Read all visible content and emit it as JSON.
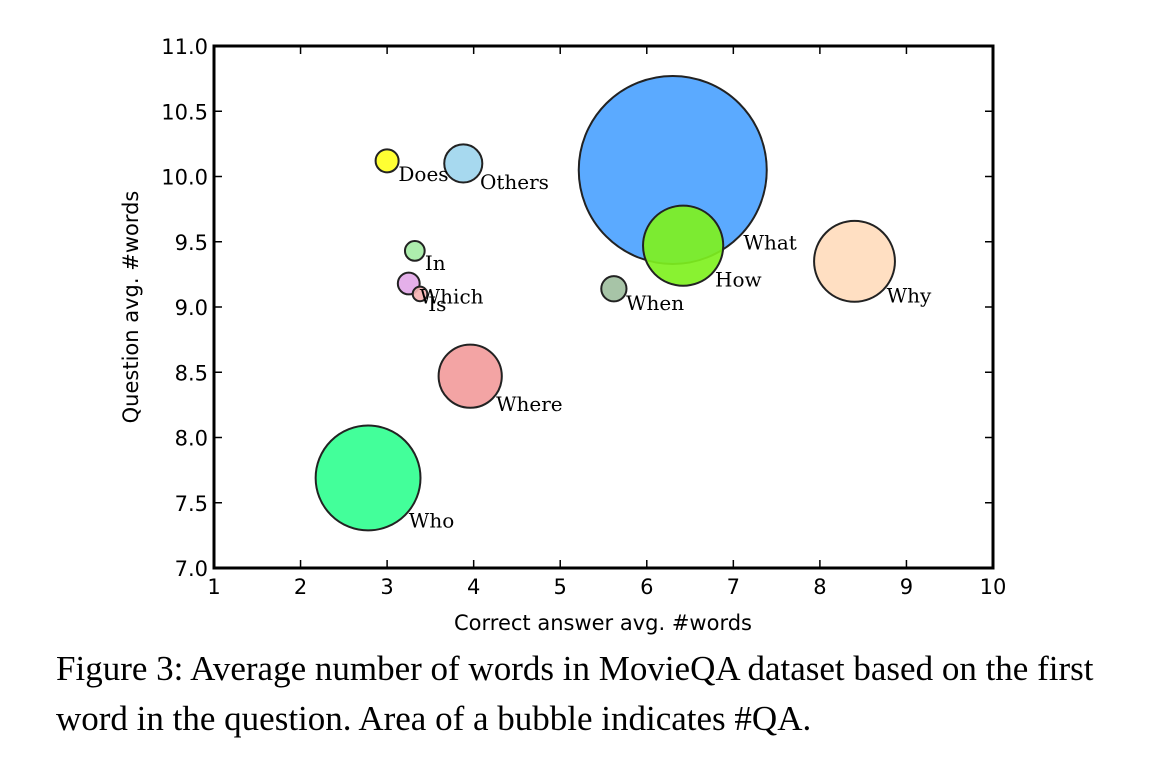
{
  "chart_data": {
    "type": "scatter",
    "xlabel": "Correct answer avg. #words",
    "ylabel": "Question avg. #words",
    "xlim": [
      1,
      10
    ],
    "ylim": [
      7.0,
      11.0
    ],
    "xticks": [
      "1",
      "2",
      "3",
      "4",
      "5",
      "6",
      "7",
      "8",
      "9",
      "10"
    ],
    "yticks": [
      "7.0",
      "7.5",
      "8.0",
      "8.5",
      "9.0",
      "9.5",
      "10.0",
      "10.5",
      "11.0"
    ],
    "grid": false,
    "points": [
      {
        "label": "What",
        "x": 6.3,
        "y": 10.05,
        "area": 100,
        "color": "#4da3ff"
      },
      {
        "label": "Who",
        "x": 2.78,
        "y": 7.69,
        "area": 31.1,
        "color": "#33ff91"
      },
      {
        "label": "Why",
        "x": 8.4,
        "y": 9.35,
        "area": 18.5,
        "color": "#ffdcbd"
      },
      {
        "label": "How",
        "x": 6.42,
        "y": 9.47,
        "area": 18.2,
        "color": "#7ff11f"
      },
      {
        "label": "Where",
        "x": 3.96,
        "y": 8.47,
        "area": 11.3,
        "color": "#f29c9c"
      },
      {
        "label": "Others",
        "x": 3.88,
        "y": 10.1,
        "area": 4.1,
        "color": "#9fd6ee"
      },
      {
        "label": "When",
        "x": 5.62,
        "y": 9.14,
        "area": 1.8,
        "color": "#9fbf9f"
      },
      {
        "label": "Does",
        "x": 3.0,
        "y": 10.12,
        "area": 1.5,
        "color": "#ffff22"
      },
      {
        "label": "In",
        "x": 3.32,
        "y": 9.43,
        "area": 1.1,
        "color": "#a6eda6"
      },
      {
        "label": "Which",
        "x": 3.25,
        "y": 9.18,
        "area": 1.35,
        "color": "#e3a9e8"
      },
      {
        "label": "Is",
        "x": 3.38,
        "y": 9.1,
        "area": 0.6,
        "color": "#f6b3b3"
      }
    ]
  },
  "caption": "Figure 3: Average number of words in MovieQA dataset based on the first word in the question. Area of a bubble indicates #QA."
}
